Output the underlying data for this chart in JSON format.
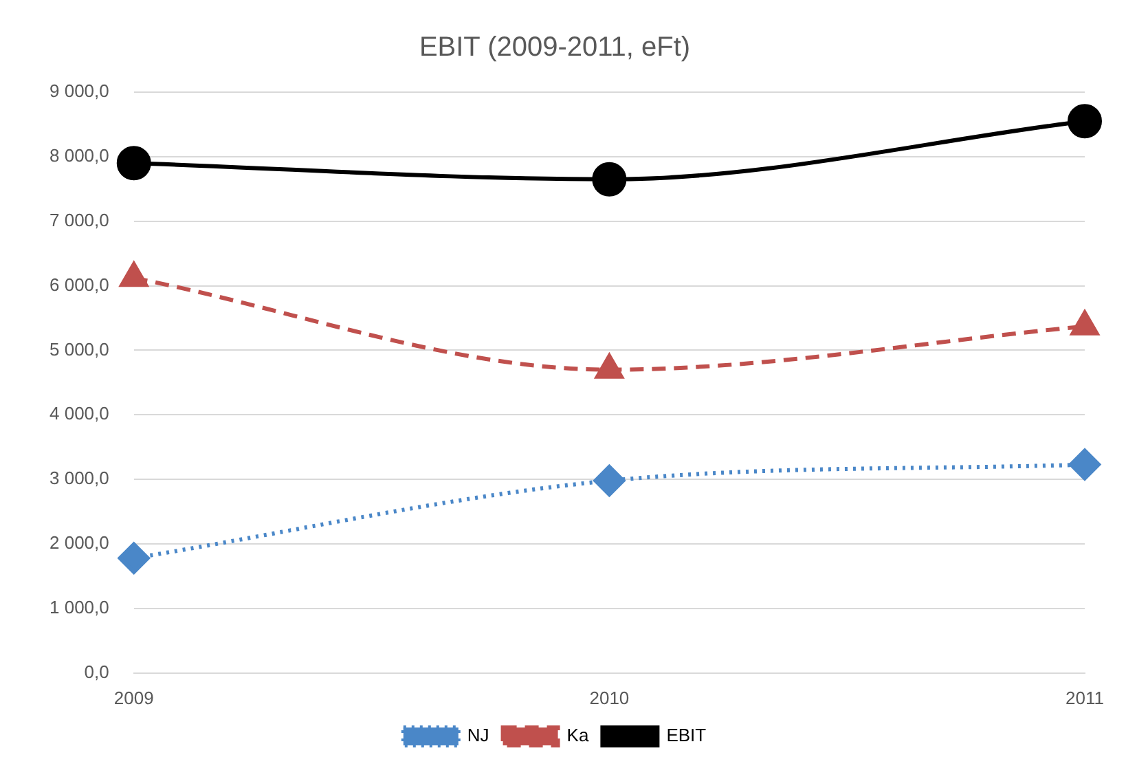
{
  "chart_data": {
    "type": "line",
    "title": "EBIT (2009-2011, eFt)",
    "categories": [
      "2009",
      "2010",
      "2011"
    ],
    "series": [
      {
        "name": "NJ",
        "color": "#4a87c8",
        "values": [
          1780,
          2980,
          3230
        ],
        "marker": "diamond",
        "line_style": "dotted"
      },
      {
        "name": "Ka",
        "color": "#c0504d",
        "values": [
          6120,
          4700,
          5370
        ],
        "marker": "triangle",
        "line_style": "dashed"
      },
      {
        "name": "EBIT",
        "color": "#000000",
        "values": [
          7900,
          7650,
          8550
        ],
        "marker": "circle",
        "line_style": "solid"
      }
    ],
    "ylim": [
      0,
      9000
    ],
    "yticks": [
      {
        "value": 0,
        "label": "0,0"
      },
      {
        "value": 1000,
        "label": "1 000,0"
      },
      {
        "value": 2000,
        "label": "2 000,0"
      },
      {
        "value": 3000,
        "label": "3 000,0"
      },
      {
        "value": 4000,
        "label": "4 000,0"
      },
      {
        "value": 5000,
        "label": "5 000,0"
      },
      {
        "value": 6000,
        "label": "6 000,0"
      },
      {
        "value": 7000,
        "label": "7 000,0"
      },
      {
        "value": 8000,
        "label": "8 000,0"
      },
      {
        "value": 9000,
        "label": "9 000,0"
      }
    ],
    "grid": "y",
    "legend": "bottom"
  }
}
